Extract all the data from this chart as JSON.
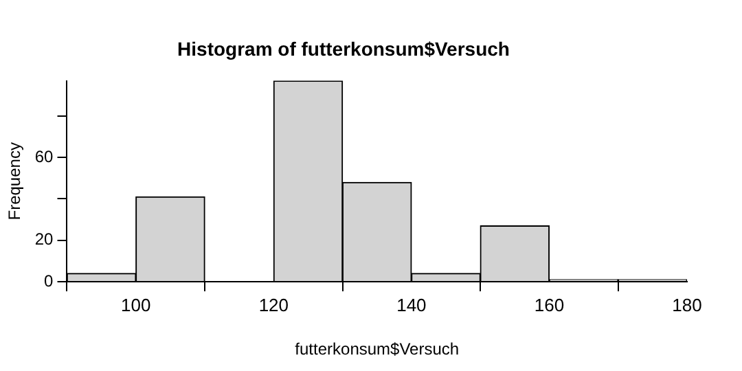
{
  "chart_data": {
    "type": "histogram",
    "title": "Histogram of futterkonsum$Versuch",
    "xlabel": "futterkonsum$Versuch",
    "ylabel": "Frequency",
    "bins": [
      90,
      100,
      110,
      120,
      130,
      140,
      150,
      160,
      170,
      180
    ],
    "values": [
      4,
      41,
      0,
      97,
      48,
      4,
      27,
      1,
      1
    ],
    "color": "#d3d3d3",
    "xlim": [
      90,
      180
    ],
    "xticks": [
      100,
      120,
      140,
      160,
      180
    ],
    "ylim": [
      0,
      97
    ],
    "yticks": [
      0,
      20,
      {
        "value": 40,
        "label": null
      },
      60,
      {
        "value": 80,
        "label": null
      }
    ],
    "grid": false,
    "legend": false
  }
}
